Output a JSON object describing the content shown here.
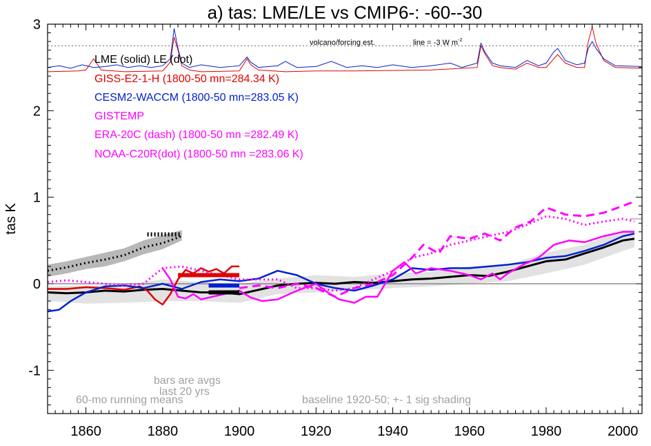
{
  "chart_data": {
    "type": "line",
    "title": "a) tas: LME/LE vs CMIP6-: -60--30",
    "ylabel": "tas K",
    "xlabel": "",
    "xlim": [
      1850,
      2005
    ],
    "ylim": [
      -1.5,
      3.0
    ],
    "x_ticks": [
      1860,
      1880,
      1900,
      1920,
      1940,
      1960,
      1980,
      2000
    ],
    "y_ticks": [
      -1,
      0,
      1,
      2,
      3
    ],
    "y_tick_labels": [
      "-1",
      "0",
      "1",
      "2",
      "3"
    ],
    "grid": false,
    "legend_lines": [
      {
        "text": "LME (solid)   LE (dot)",
        "color": "#000000"
      },
      {
        "text": "GISS-E2-1-H (1800-50 mn=284.34 K)",
        "color": "#e00000"
      },
      {
        "text": "CESM2-WACCM (1800-50 mn=283.05 K)",
        "color": "#0020d0"
      },
      {
        "text": "GISTEMP",
        "color": "#ff00ff"
      },
      {
        "text": "ERA-20C (dash) (1800-50 mn =282.49 K)",
        "color": "#ff00ff"
      },
      {
        "text": "NOAA-C20R(dot) (1800-50 mn =283.06 K)",
        "color": "#ff00ff"
      }
    ],
    "annotations": {
      "volcano": "volcano/forcing est.",
      "line": "line = -3 W m",
      "line_sup": "-2",
      "bars": "bars are avgs",
      "bars2": "last 20 yrs",
      "running": "60-mo running means",
      "baseline": "baseline 1920-50; +- 1 sig shading"
    },
    "forcing_reference_y": 2.75,
    "right_reference_y": 0.75,
    "series": [
      {
        "name": "LME (solid)",
        "color": "#000000",
        "style": "solid",
        "width": 3,
        "x": [
          1850,
          1855,
          1860,
          1865,
          1870,
          1875,
          1880,
          1885,
          1890,
          1895,
          1900,
          1905,
          1910,
          1915,
          1920,
          1925,
          1930,
          1935,
          1940,
          1945,
          1950,
          1955,
          1960,
          1965,
          1970,
          1975,
          1980,
          1985,
          1990,
          1995,
          2000,
          2003
        ],
        "y": [
          -0.1,
          -0.11,
          -0.1,
          -0.08,
          -0.09,
          -0.07,
          -0.06,
          -0.08,
          -0.1,
          -0.1,
          -0.12,
          -0.07,
          -0.02,
          0.0,
          0.01,
          0.0,
          0.02,
          0.01,
          0.03,
          0.05,
          0.06,
          0.08,
          0.1,
          0.09,
          0.14,
          0.2,
          0.26,
          0.28,
          0.35,
          0.42,
          0.5,
          0.52
        ]
      },
      {
        "name": "LE (dot)",
        "color": "#000000",
        "style": "dotted",
        "width": 3,
        "x": [
          1850,
          1855,
          1860,
          1865,
          1870,
          1875,
          1880,
          1885
        ],
        "y": [
          0.15,
          0.19,
          0.24,
          0.28,
          0.33,
          0.42,
          0.47,
          0.55
        ]
      },
      {
        "name": "GISS-E2-1-H",
        "color": "#e00000",
        "style": "solid",
        "width": 2.5,
        "x": [
          1850,
          1855,
          1860,
          1865,
          1870,
          1872,
          1874,
          1876,
          1878,
          1880,
          1882,
          1884,
          1886,
          1888,
          1890,
          1892,
          1894,
          1896,
          1898,
          1900
        ],
        "y": [
          -0.06,
          -0.06,
          -0.04,
          -0.05,
          -0.07,
          -0.05,
          -0.03,
          -0.08,
          -0.18,
          -0.24,
          -0.12,
          0.05,
          0.16,
          0.12,
          0.18,
          0.14,
          0.17,
          0.12,
          0.2,
          0.2
        ]
      },
      {
        "name": "CESM2-WACCM",
        "color": "#0020d0",
        "style": "solid",
        "width": 2.5,
        "x": [
          1850,
          1853,
          1856,
          1860,
          1865,
          1870,
          1875,
          1880,
          1885,
          1890,
          1895,
          1900,
          1905,
          1910,
          1915,
          1920,
          1925,
          1930,
          1935,
          1940,
          1945,
          1950,
          1955,
          1960,
          1965,
          1970,
          1975,
          1980,
          1985,
          1990,
          1995,
          2000,
          2003
        ],
        "y": [
          -0.32,
          -0.3,
          -0.2,
          -0.1,
          -0.03,
          -0.02,
          -0.05,
          0.0,
          -0.06,
          0.02,
          0.05,
          0.03,
          0.06,
          0.15,
          0.1,
          0.0,
          -0.05,
          -0.08,
          -0.02,
          0.05,
          0.18,
          0.16,
          0.18,
          0.18,
          0.2,
          0.22,
          0.25,
          0.3,
          0.32,
          0.38,
          0.45,
          0.55,
          0.58
        ]
      },
      {
        "name": "GISTEMP",
        "color": "#ff00ff",
        "style": "solid",
        "width": 2.5,
        "x": [
          1880,
          1882,
          1884,
          1886,
          1888,
          1890,
          1893,
          1896,
          1900,
          1903,
          1906,
          1910,
          1914,
          1918,
          1920,
          1923,
          1926,
          1930,
          1933,
          1936,
          1940,
          1943,
          1946,
          1950,
          1955,
          1960,
          1963,
          1966,
          1968,
          1970,
          1974,
          1978,
          1982,
          1986,
          1990,
          1995,
          2000,
          2003
        ],
        "y": [
          0.18,
          0.05,
          -0.15,
          -0.17,
          -0.12,
          -0.18,
          -0.15,
          -0.12,
          -0.08,
          -0.16,
          -0.2,
          -0.18,
          -0.1,
          -0.03,
          0.0,
          -0.1,
          -0.18,
          -0.22,
          -0.15,
          -0.15,
          0.15,
          0.25,
          0.12,
          0.18,
          0.15,
          0.1,
          0.05,
          0.12,
          0.05,
          0.12,
          0.22,
          0.3,
          0.45,
          0.5,
          0.48,
          0.55,
          0.6,
          0.6
        ]
      },
      {
        "name": "ERA-20C (dash)",
        "color": "#ff00ff",
        "style": "dashed",
        "width": 3,
        "x": [
          1900,
          1905,
          1910,
          1915,
          1920,
          1925,
          1930,
          1935,
          1940,
          1945,
          1948,
          1952,
          1955,
          1960,
          1964,
          1968,
          1972,
          1976,
          1980,
          1985,
          1990,
          1995,
          2000,
          2003
        ],
        "y": [
          -0.05,
          -0.02,
          -0.05,
          0.0,
          -0.05,
          -0.15,
          -0.05,
          0.0,
          0.1,
          0.3,
          0.45,
          0.35,
          0.55,
          0.52,
          0.58,
          0.5,
          0.65,
          0.72,
          0.88,
          0.8,
          0.78,
          0.82,
          0.9,
          0.95
        ]
      },
      {
        "name": "NOAA-C20R(dot)",
        "color": "#ff00ff",
        "style": "dotted",
        "width": 3,
        "x": [
          1850,
          1855,
          1860,
          1865,
          1870,
          1875,
          1880,
          1885,
          1890,
          1895,
          1900,
          1905,
          1910,
          1915,
          1920,
          1925,
          1930,
          1935,
          1940,
          1945,
          1950,
          1955,
          1960,
          1965,
          1970,
          1975,
          1980,
          1985,
          1990,
          1995,
          2000,
          2003
        ],
        "y": [
          0.02,
          0.04,
          0.02,
          0.0,
          -0.02,
          0.0,
          0.18,
          0.2,
          0.15,
          0.1,
          0.05,
          0.05,
          0.05,
          -0.05,
          -0.05,
          -0.08,
          -0.05,
          0.05,
          0.15,
          0.3,
          0.35,
          0.45,
          0.5,
          0.55,
          0.6,
          0.68,
          0.78,
          0.75,
          0.68,
          0.72,
          0.75,
          0.72
        ]
      }
    ],
    "shading": [
      {
        "name": "LME spread",
        "color": "#e2e2e2",
        "x": [
          1850,
          1860,
          1870,
          1880,
          1890,
          1900,
          1910,
          1920,
          1930,
          1940,
          1950,
          1960,
          1970,
          1980,
          1990,
          2000,
          2003
        ],
        "lower": [
          -0.2,
          -0.23,
          -0.22,
          -0.2,
          -0.2,
          -0.22,
          -0.12,
          -0.1,
          -0.08,
          -0.05,
          -0.03,
          0.0,
          0.03,
          0.12,
          0.22,
          0.38,
          0.42
        ],
        "upper": [
          -0.03,
          -0.02,
          -0.01,
          0.05,
          0.02,
          0.0,
          0.06,
          0.1,
          0.08,
          0.12,
          0.14,
          0.2,
          0.22,
          0.36,
          0.45,
          0.62,
          0.62
        ]
      },
      {
        "name": "LE spread",
        "color": "#b8b8b8",
        "x": [
          1850,
          1855,
          1860,
          1865,
          1870,
          1875,
          1880,
          1885
        ],
        "lower": [
          0.08,
          0.12,
          0.17,
          0.2,
          0.26,
          0.34,
          0.4,
          0.5
        ],
        "upper": [
          0.22,
          0.26,
          0.31,
          0.36,
          0.41,
          0.5,
          0.56,
          0.62
        ]
      }
    ],
    "bars": [
      {
        "name": "GISS-E2-1-H",
        "color": "#e00000",
        "x": [
          1884,
          1900
        ],
        "y": 0.1
      },
      {
        "name": "CESM2-WACCM",
        "color": "#0020d0",
        "x": [
          1892,
          1900
        ],
        "y": -0.02
      },
      {
        "name": "LME",
        "color": "#000000",
        "x": [
          1892,
          1900
        ],
        "y": -0.1
      },
      {
        "name": "LE",
        "color": "#000000",
        "x": [
          1876,
          1885
        ],
        "y": 0.57,
        "dotted": true
      }
    ],
    "forcing_series": [
      {
        "name": "GISS-E2-1-H forcing",
        "color": "#e00000",
        "x": [
          1850,
          1858,
          1860,
          1862,
          1864,
          1870,
          1880,
          1882,
          1883,
          1884,
          1885,
          1887,
          1890,
          1900,
          1902,
          1903,
          1905,
          1912,
          1920,
          1930,
          1950,
          1962,
          1963,
          1964,
          1966,
          1968,
          1972,
          1975,
          1978,
          1980,
          1982,
          1983,
          1985,
          1988,
          1990,
          1991,
          1992,
          1993,
          1995,
          1998,
          2005
        ],
        "y": [
          2.45,
          2.46,
          2.47,
          2.6,
          2.47,
          2.45,
          2.46,
          2.56,
          2.85,
          2.7,
          2.52,
          2.47,
          2.45,
          2.46,
          2.6,
          2.53,
          2.47,
          2.45,
          2.46,
          2.46,
          2.47,
          2.5,
          2.75,
          2.66,
          2.52,
          2.5,
          2.48,
          2.55,
          2.5,
          2.5,
          2.6,
          2.65,
          2.55,
          2.5,
          2.5,
          2.8,
          2.97,
          2.78,
          2.58,
          2.5,
          2.49
        ]
      },
      {
        "name": "CESM2-WACCM forcing",
        "color": "#0020d0",
        "x": [
          1850,
          1853,
          1856,
          1859,
          1862,
          1865,
          1868,
          1871,
          1874,
          1877,
          1880,
          1882,
          1883,
          1884,
          1885,
          1887,
          1890,
          1895,
          1900,
          1902,
          1903,
          1905,
          1910,
          1912,
          1915,
          1920,
          1924,
          1928,
          1932,
          1936,
          1940,
          1945,
          1950,
          1955,
          1958,
          1962,
          1963,
          1964,
          1966,
          1968,
          1972,
          1975,
          1978,
          1980,
          1982,
          1983,
          1985,
          1988,
          1990,
          1991,
          1992,
          1993,
          1995,
          1998,
          2005
        ],
        "y": [
          2.5,
          2.52,
          2.49,
          2.53,
          2.5,
          2.51,
          2.53,
          2.5,
          2.52,
          2.5,
          2.52,
          2.6,
          2.95,
          2.72,
          2.55,
          2.5,
          2.53,
          2.5,
          2.52,
          2.62,
          2.56,
          2.5,
          2.52,
          2.57,
          2.5,
          2.51,
          2.57,
          2.5,
          2.52,
          2.5,
          2.53,
          2.5,
          2.52,
          2.55,
          2.5,
          2.55,
          2.78,
          2.68,
          2.55,
          2.52,
          2.5,
          2.58,
          2.52,
          2.55,
          2.68,
          2.72,
          2.58,
          2.53,
          2.55,
          2.72,
          2.8,
          2.72,
          2.6,
          2.52,
          2.51
        ]
      }
    ]
  }
}
